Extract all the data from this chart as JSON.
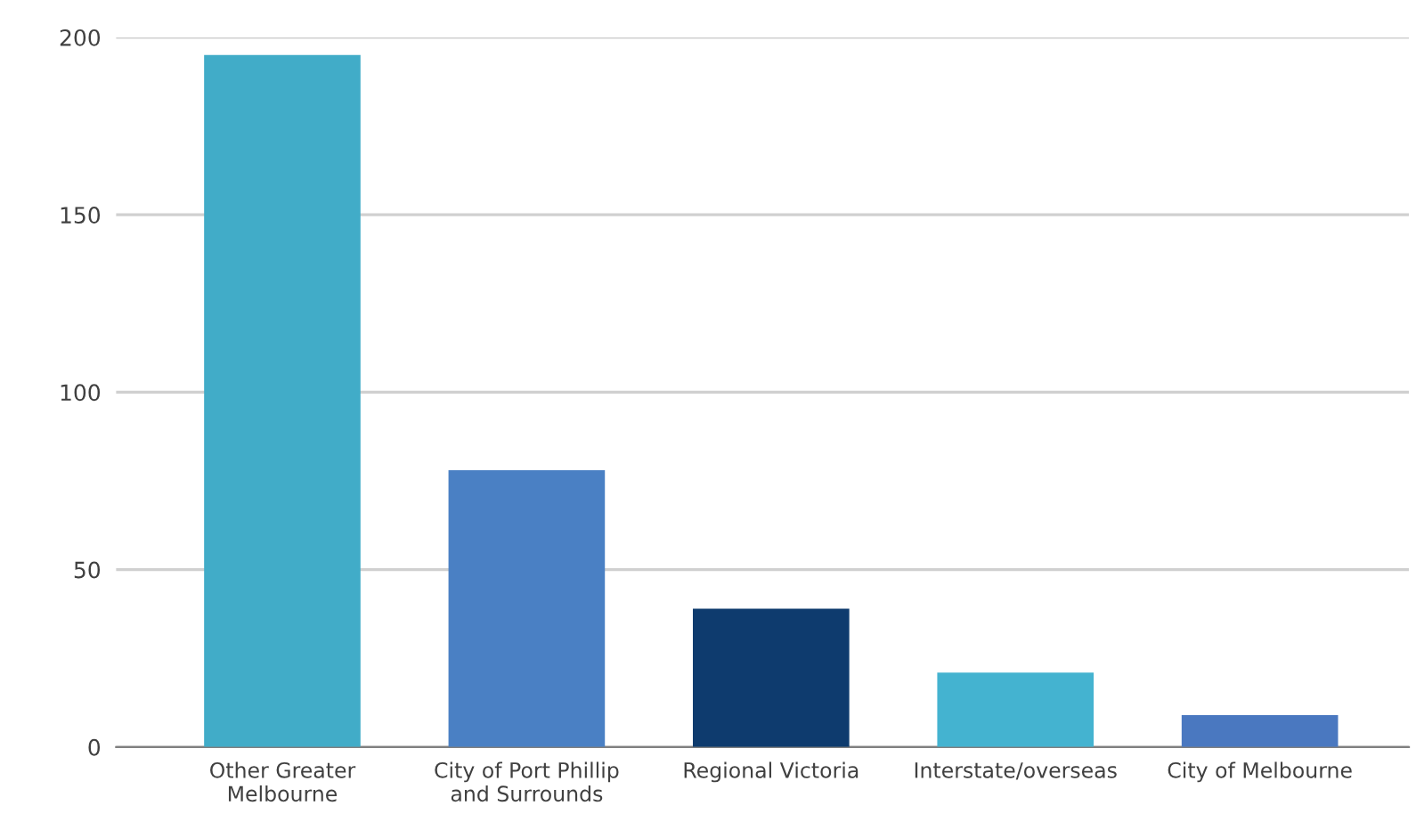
{
  "chart_data": {
    "type": "bar",
    "categories": [
      "Other Greater\nMelbourne",
      "City of Port Phillip\nand Surrounds",
      "Regional Victoria",
      "Interstate/overseas",
      "City of Melbourne"
    ],
    "values": [
      195,
      78,
      39,
      21,
      9
    ],
    "colors": [
      "#41acc8",
      "#4a80c4",
      "#0e3b6e",
      "#44b3d0",
      "#4a78c0"
    ],
    "ylim": [
      0,
      200
    ],
    "yticks": [
      0,
      50,
      100,
      150,
      200
    ],
    "grid": "y"
  }
}
